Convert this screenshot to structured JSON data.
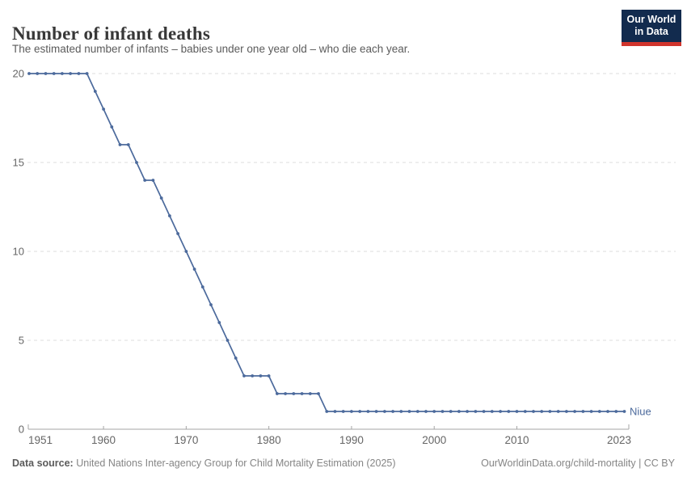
{
  "header": {
    "title": "Number of infant deaths",
    "subtitle": "The estimated number of infants – babies under one year old – who die each year.",
    "logo": {
      "line1": "Our World",
      "line2": "in Data"
    }
  },
  "chart_data": {
    "type": "line",
    "title": "Number of infant deaths",
    "subtitle": "The estimated number of infants – babies under one year old – who die each year.",
    "x": [
      1951,
      1952,
      1953,
      1954,
      1955,
      1956,
      1957,
      1958,
      1959,
      1960,
      1961,
      1962,
      1963,
      1964,
      1965,
      1966,
      1967,
      1968,
      1969,
      1970,
      1971,
      1972,
      1973,
      1974,
      1975,
      1976,
      1977,
      1978,
      1979,
      1980,
      1981,
      1982,
      1983,
      1984,
      1985,
      1986,
      1987,
      1988,
      1989,
      1990,
      1991,
      1992,
      1993,
      1994,
      1995,
      1996,
      1997,
      1998,
      1999,
      2000,
      2001,
      2002,
      2003,
      2004,
      2005,
      2006,
      2007,
      2008,
      2009,
      2010,
      2011,
      2012,
      2013,
      2014,
      2015,
      2016,
      2017,
      2018,
      2019,
      2020,
      2021,
      2022,
      2023
    ],
    "series": [
      {
        "name": "Niue",
        "values": [
          20,
          20,
          20,
          20,
          20,
          20,
          20,
          20,
          19,
          18,
          17,
          16,
          16,
          15,
          14,
          14,
          13,
          12,
          11,
          10,
          9,
          8,
          7,
          6,
          5,
          4,
          3,
          3,
          3,
          3,
          2,
          2,
          2,
          2,
          2,
          2,
          1,
          1,
          1,
          1,
          1,
          1,
          1,
          1,
          1,
          1,
          1,
          1,
          1,
          1,
          1,
          1,
          1,
          1,
          1,
          1,
          1,
          1,
          1,
          1,
          1,
          1,
          1,
          1,
          1,
          1,
          1,
          1,
          1,
          1,
          1,
          1,
          1
        ]
      }
    ],
    "xlabel": "",
    "ylabel": "",
    "xlim": [
      1951,
      2023
    ],
    "ylim": [
      0,
      20
    ],
    "xticks": [
      1951,
      1960,
      1970,
      1980,
      1990,
      2000,
      2010,
      2023
    ],
    "yticks": [
      0,
      5,
      10,
      15,
      20
    ],
    "grid": "horizontal-dashed",
    "legend_position": "end-of-line-label",
    "line_color": "#4C6A9C",
    "grid_color": "#dcdcdc",
    "axis_color": "#a5a5a5",
    "tick_label_color": "#666666"
  },
  "footer": {
    "datasource_label": "Data source:",
    "datasource_text": "United Nations Inter-agency Group for Child Mortality Estimation (2025)",
    "link_text": "OurWorldinData.org/child-mortality | CC BY"
  },
  "colors": {
    "accent_blue": "#4C6A9C",
    "logo_navy": "#122B4E",
    "logo_red": "#D0342C",
    "title_text": "#383838",
    "muted_text": "#5b5b5b"
  }
}
